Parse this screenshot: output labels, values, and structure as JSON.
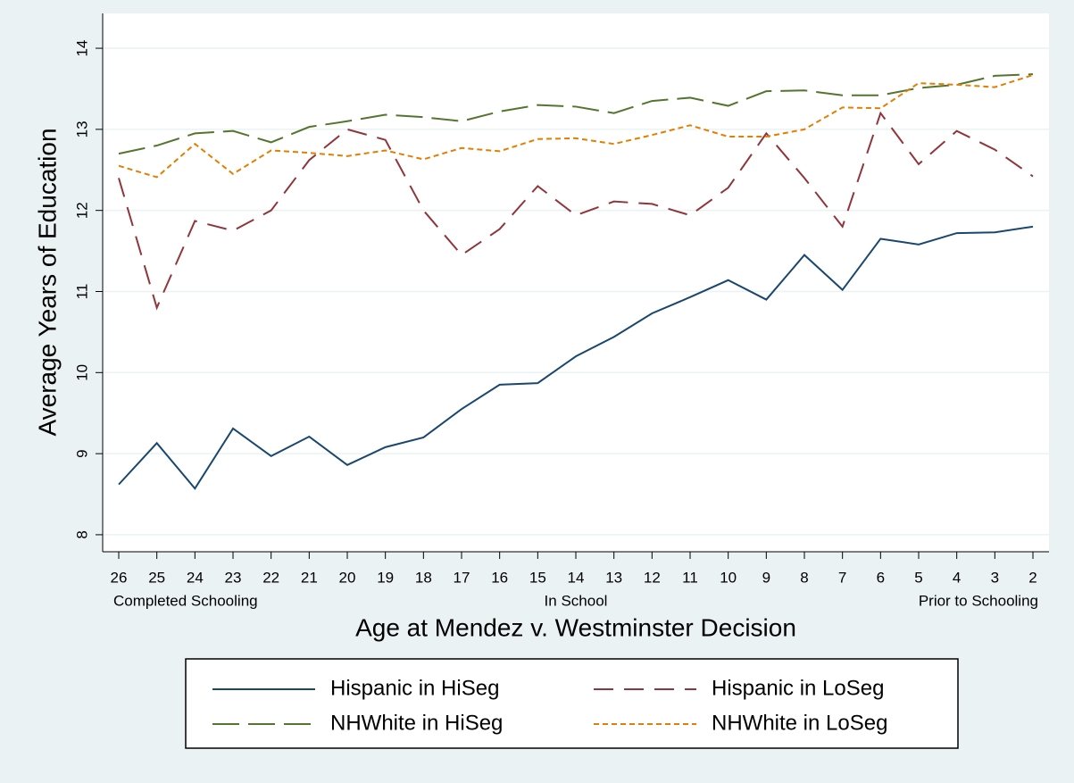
{
  "chart_data": {
    "type": "line",
    "y_label": "Average Years of Education",
    "x_label": "Age at Mendez v. Westminster Decision",
    "categories": [
      "26",
      "25",
      "24",
      "23",
      "22",
      "21",
      "20",
      "19",
      "18",
      "17",
      "16",
      "15",
      "14",
      "13",
      "12",
      "11",
      "10",
      "9",
      "8",
      "7",
      "6",
      "5",
      "4",
      "3",
      "2"
    ],
    "x_group_labels": [
      "Completed Schooling",
      "In School",
      "Prior to Schooling"
    ],
    "ylim": [
      7.79,
      14.43
    ],
    "yticks": [
      8,
      9,
      10,
      11,
      12,
      13,
      14
    ],
    "grid": true,
    "legend_position": "bottom",
    "series": [
      {
        "name": "Hispanic in HiSeg",
        "color": "#1a476f",
        "style": "solid",
        "values": [
          8.62,
          9.13,
          8.57,
          9.31,
          8.97,
          9.21,
          8.86,
          9.08,
          9.2,
          9.55,
          9.85,
          9.87,
          10.2,
          10.44,
          10.73,
          10.93,
          11.14,
          10.9,
          11.45,
          11.02,
          11.65,
          11.58,
          11.72,
          11.73,
          11.8
        ]
      },
      {
        "name": "Hispanic in LoSeg",
        "color": "#90353b",
        "style": "dash",
        "values": [
          12.4,
          10.8,
          11.87,
          11.75,
          12.0,
          12.62,
          13.0,
          12.87,
          12.0,
          11.45,
          11.77,
          12.3,
          11.94,
          12.11,
          12.08,
          11.94,
          12.28,
          12.95,
          12.4,
          11.8,
          13.2,
          12.57,
          12.98,
          12.75,
          12.42
        ]
      },
      {
        "name": "NHWhite in HiSeg",
        "color": "#55752f",
        "style": "longdash",
        "values": [
          12.7,
          12.8,
          12.95,
          12.98,
          12.84,
          13.03,
          13.1,
          13.18,
          13.15,
          13.1,
          13.22,
          13.3,
          13.28,
          13.2,
          13.35,
          13.39,
          13.29,
          13.47,
          13.48,
          13.42,
          13.42,
          13.51,
          13.55,
          13.66,
          13.68
        ]
      },
      {
        "name": "NHWhite in LoSeg",
        "color": "#e37e00",
        "style": "shortdash",
        "values": [
          12.55,
          12.41,
          12.82,
          12.45,
          12.74,
          12.71,
          12.67,
          12.74,
          12.63,
          12.77,
          12.73,
          12.88,
          12.89,
          12.82,
          12.93,
          13.05,
          12.91,
          12.91,
          13.0,
          13.27,
          13.26,
          13.57,
          13.55,
          13.52,
          13.67
        ]
      }
    ]
  }
}
